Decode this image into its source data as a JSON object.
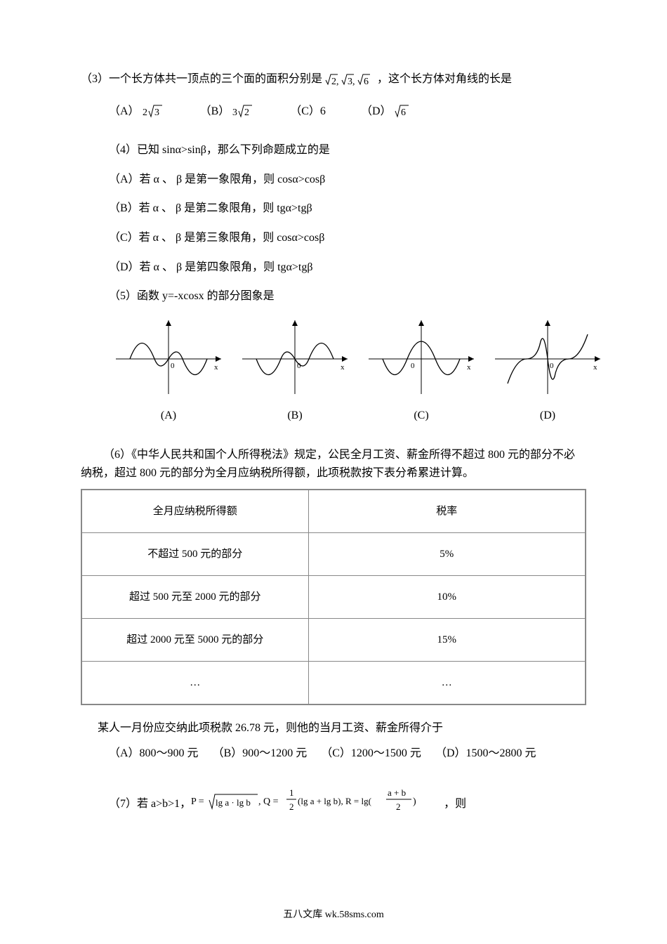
{
  "q3": {
    "text": "（3）一个长方体共一顶点的三个面的面积分别是 ",
    "expr_parts": [
      "√2,",
      "√3,",
      "√6"
    ],
    "text_after": "，这个长方体对角线的长是",
    "options": {
      "A_label": "（A）",
      "A_val": "2√3",
      "B_label": "（B）",
      "B_val": "3√2",
      "C_label": "（C）6",
      "D_label": "（D）",
      "D_val": "√6"
    }
  },
  "q4": {
    "text": "（4）已知 sinα>sinβ，那么下列命题成立的是",
    "A": "（A）若 α 、 β 是第一象限角，则 cosα>cosβ",
    "B": "（B）若 α 、 β 是第二象限角，则 tgα>tgβ",
    "C": "（C）若 α 、 β 是第三象限角，则 cosα>cosβ",
    "D": "（D）若 α 、 β 是第四象限角，则 tgα>tgβ"
  },
  "q5": {
    "text": "（5）函数 y=-xcosx 的部分图象是",
    "labels": {
      "A": "(A)",
      "B": "(B)",
      "C": "(C)",
      "D": "(D)"
    },
    "axis_label": "x",
    "origin_label": "0",
    "curve_color": "#000000"
  },
  "q6": {
    "line1": "（6）《中华人民共和国个人所得税法》规定，公民全月工资、薪金所得不超过 800 元的部分不必",
    "line2": "纳税，超过 800 元的部分为全月应纳税所得额，此项税款按下表分希累进计算。",
    "table": {
      "columns": [
        "全月应纳税所得额",
        "税率"
      ],
      "rows": [
        [
          "不超过 500 元的部分",
          "5%"
        ],
        [
          "超过 500 元至 2000 元的部分",
          "10%"
        ],
        [
          "超过 2000 元至 5000 元的部分",
          "15%"
        ],
        [
          "…",
          "…"
        ]
      ]
    },
    "after": "某人一月份应交纳此项税款 26.78 元，则他的当月工资、薪金所得介于",
    "options": {
      "A": "（A）800～900 元",
      "B": "（B）900～1200 元",
      "C": "（C）1200～1500 元",
      "D": "（D）1500～2800 元"
    }
  },
  "q7": {
    "prefix": "（7）若 a>b>1，",
    "suffix": "，则"
  },
  "footer": "五八文库 wk.58sms.com"
}
